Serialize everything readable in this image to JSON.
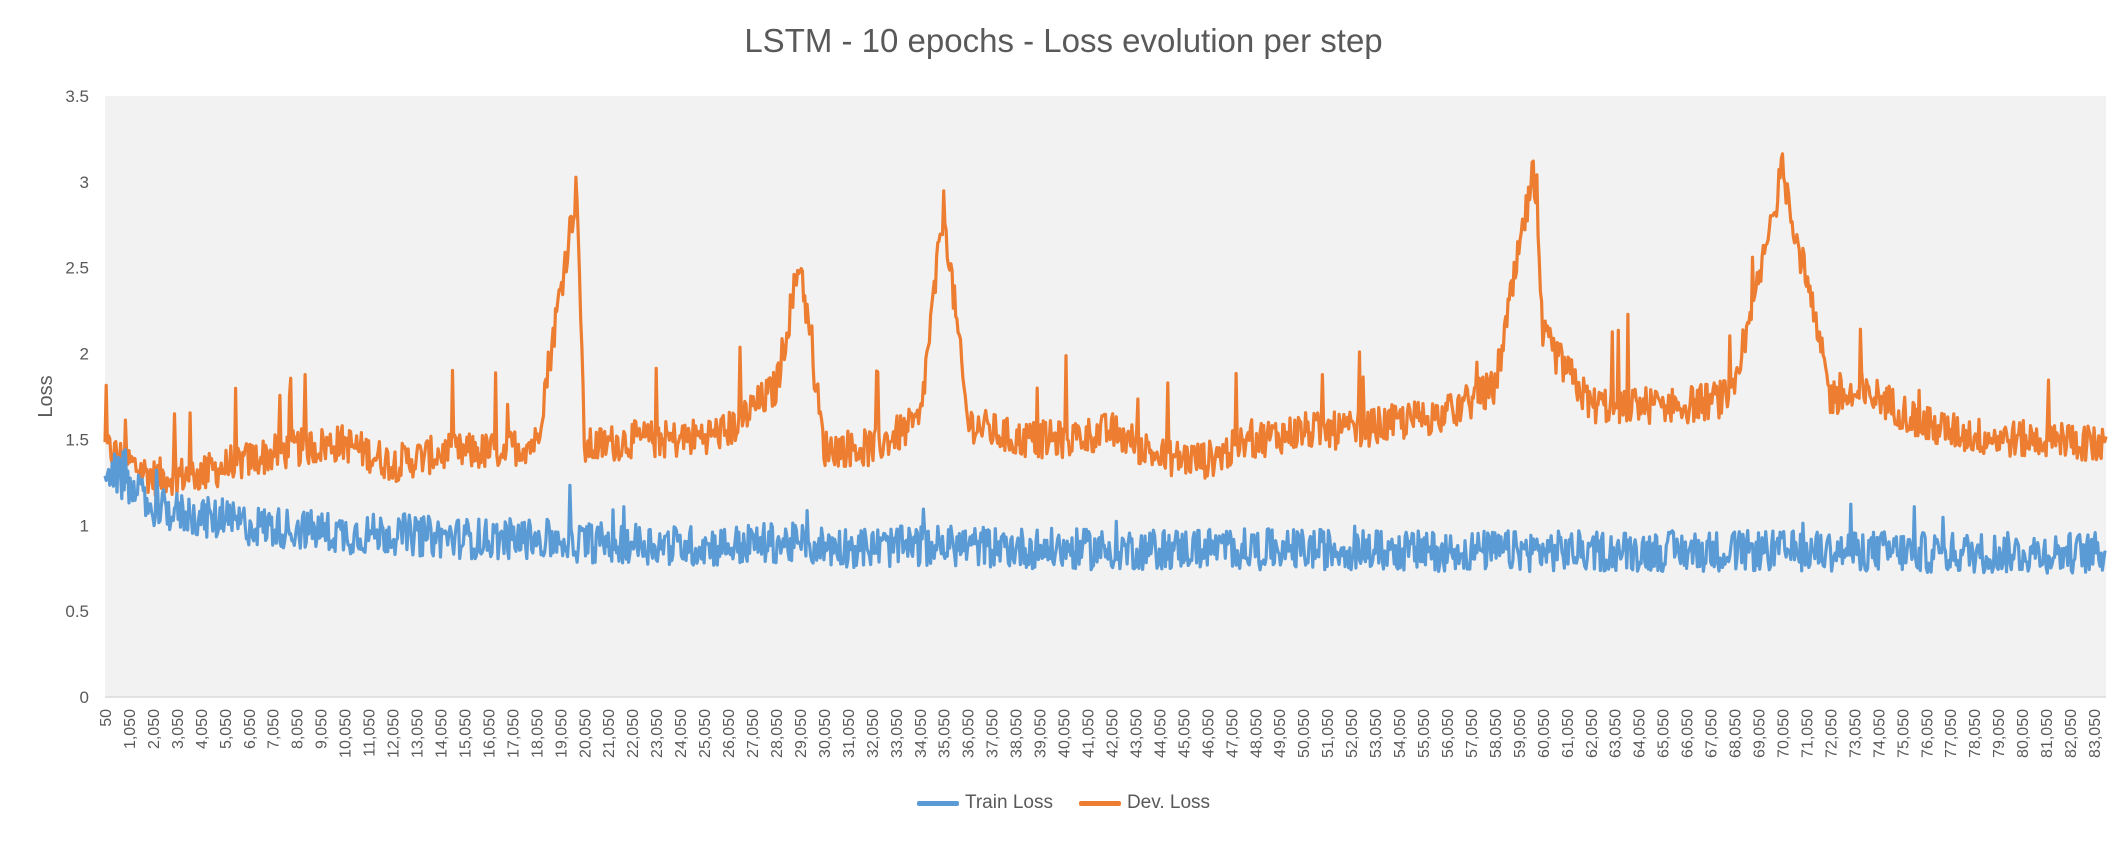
{
  "chart_data": {
    "type": "line",
    "title": "LSTM - 10 epochs - Loss evolution per step",
    "xlabel": "",
    "ylabel": "Loss",
    "ylim": [
      0,
      3.5
    ],
    "yticks": [
      0,
      0.5,
      1,
      1.5,
      2,
      2.5,
      3,
      3.5
    ],
    "ytick_labels": [
      "0",
      "0.5",
      "1",
      "1.5",
      "2",
      "2.5",
      "3",
      "3.5"
    ],
    "x_step_interval": 50,
    "x_label_interval": 1000,
    "xlim": [
      50,
      83550
    ],
    "grid": false,
    "legend_position": "bottom",
    "colors": {
      "train": "#5B9BD5",
      "dev": "#ED7D31",
      "plot_bg": "#F2F2F2",
      "text": "#595959"
    },
    "series": [
      {
        "name": "Train Loss",
        "color": "#5B9BD5",
        "x": [
          50,
          2050,
          4050,
          6050,
          8050,
          10050,
          12050,
          14050,
          16050,
          18050,
          20050,
          22050,
          24050,
          26050,
          28050,
          30050,
          32050,
          34050,
          36050,
          38050,
          40050,
          42050,
          44050,
          46050,
          48050,
          50050,
          52050,
          54050,
          56050,
          58050,
          60050,
          62050,
          64050,
          66050,
          68050,
          70050,
          72050,
          74050,
          76050,
          78050,
          80050,
          82050,
          83550
        ],
        "values": [
          1.35,
          1.1,
          1.05,
          1.0,
          0.98,
          0.95,
          0.95,
          0.93,
          0.92,
          0.92,
          0.9,
          0.9,
          0.88,
          0.88,
          0.9,
          0.88,
          0.87,
          0.88,
          0.88,
          0.87,
          0.86,
          0.86,
          0.86,
          0.87,
          0.86,
          0.86,
          0.86,
          0.85,
          0.85,
          0.85,
          0.85,
          0.85,
          0.85,
          0.85,
          0.85,
          0.85,
          0.85,
          0.85,
          0.84,
          0.84,
          0.84,
          0.84,
          0.84
        ]
      },
      {
        "name": "Dev. Loss",
        "color": "#ED7D31",
        "x": [
          50,
          2050,
          4050,
          6050,
          8050,
          10050,
          12050,
          14050,
          16050,
          18050,
          19750,
          20050,
          22050,
          24050,
          26050,
          28050,
          29050,
          30050,
          32050,
          34050,
          35050,
          36050,
          38050,
          40050,
          42050,
          44050,
          46050,
          48050,
          50050,
          52050,
          54050,
          56050,
          58050,
          59650,
          60050,
          62050,
          64050,
          66050,
          68050,
          70050,
          72050,
          74050,
          76050,
          78050,
          80050,
          82050,
          83550
        ],
        "values": [
          1.45,
          1.28,
          1.3,
          1.38,
          1.45,
          1.48,
          1.36,
          1.42,
          1.43,
          1.48,
          2.98,
          1.45,
          1.5,
          1.5,
          1.55,
          1.8,
          2.55,
          1.45,
          1.45,
          1.6,
          2.85,
          1.6,
          1.5,
          1.5,
          1.55,
          1.4,
          1.38,
          1.5,
          1.55,
          1.55,
          1.6,
          1.65,
          1.8,
          3.05,
          2.1,
          1.7,
          1.7,
          1.7,
          1.75,
          3.07,
          1.75,
          1.75,
          1.58,
          1.52,
          1.5,
          1.5,
          1.45
        ]
      }
    ]
  }
}
